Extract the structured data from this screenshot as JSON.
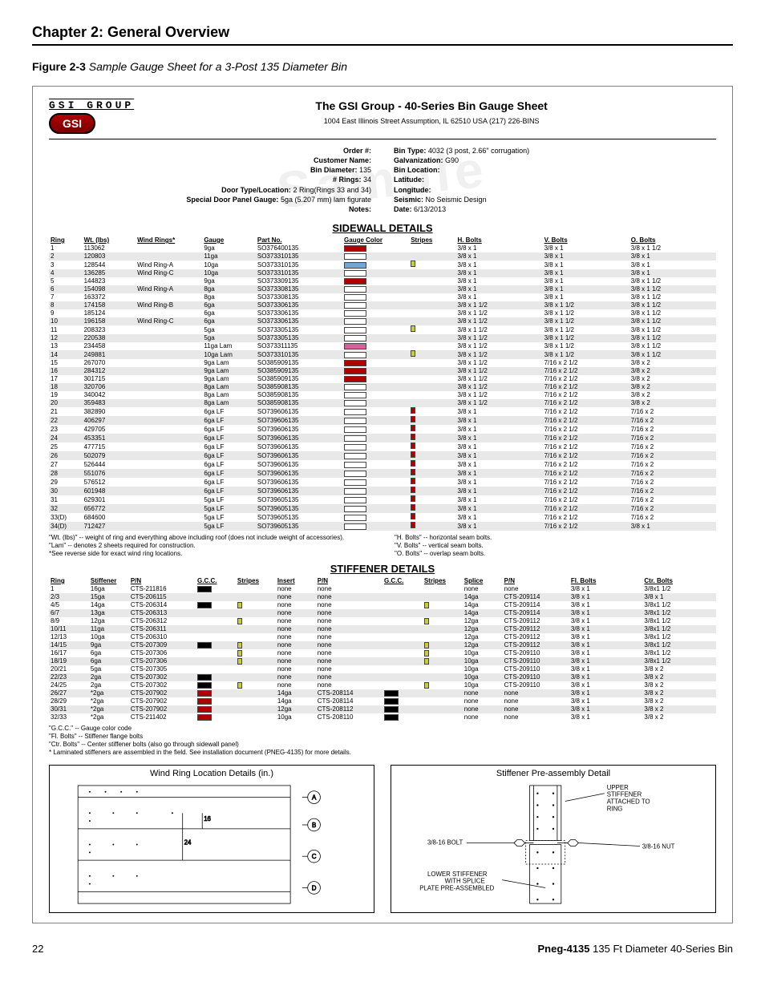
{
  "chapter": "Chapter 2: General Overview",
  "figure_label": "Figure 2-3",
  "figure_desc": "Sample Gauge Sheet for a 3-Post 135 Diameter Bin",
  "gsi_group_text": "GSI GROUP",
  "gsi_badge": "GSI",
  "sheet_title": "The GSI Group - 40-Series Bin Gauge Sheet",
  "address": "1004 East Illinois Street Assumption, IL 62510 USA (217) 226-BINS",
  "info_left": {
    "order": "Order #:",
    "customer": "Customer Name:",
    "diam_lbl": "Bin Diameter:",
    "diam_val": "135",
    "rings_lbl": "# Rings:",
    "rings_val": "34",
    "door_lbl": "Door Type/Location:",
    "door_val": "2 Ring(Rings 33 and 34)",
    "special_lbl": "Special Door Panel Gauge:",
    "special_val": "5ga (5.207 mm) lam figurate",
    "notes_lbl": "Notes:"
  },
  "info_right": {
    "bintype_lbl": "Bin Type:",
    "bintype_val": "4032 (3 post, 2.66\" corrugation)",
    "galv_lbl": "Galvanization:",
    "galv_val": "G90",
    "binloc_lbl": "Bin Location:",
    "lat_lbl": "Latitude:",
    "lon_lbl": "Longitude:",
    "seismic_lbl": "Seismic:",
    "seismic_val": "No Seismic Design",
    "date_lbl": "Date:",
    "date_val": "6/13/2013"
  },
  "sidewall_section": "SIDEWALL DETAILS",
  "sidewall_headers": [
    "Ring",
    "Wt. (lbs)",
    "Wind Rings*",
    "Gauge",
    "Part No.",
    "Gauge Color",
    "Stripes",
    "H. Bolts",
    "V. Bolts",
    "O. Bolts"
  ],
  "sidewall_rows": [
    {
      "r": "1",
      "wt": "113062",
      "wind": "",
      "g": "9ga",
      "pn": "SO376400135",
      "gc": "#b00000",
      "st": "",
      "h": "3/8 x 1",
      "v": "3/8 x 1",
      "o": "3/8 x 1 1/2"
    },
    {
      "r": "2",
      "wt": "120803",
      "wind": "",
      "g": "11ga",
      "pn": "SO373310135",
      "gc": "",
      "st": "",
      "h": "3/8 x 1",
      "v": "3/8 x 1",
      "o": "3/8 x 1"
    },
    {
      "r": "3",
      "wt": "128544",
      "wind": "Wind Ring-A",
      "g": "10ga",
      "pn": "SO373310135",
      "gc": "#6fa8d8",
      "st": "#cccc33",
      "h": "3/8 x 1",
      "v": "3/8 x 1",
      "o": "3/8 x 1"
    },
    {
      "r": "4",
      "wt": "136285",
      "wind": "Wind Ring-C",
      "g": "10ga",
      "pn": "SO373310135",
      "gc": "",
      "st": "",
      "h": "3/8 x 1",
      "v": "3/8 x 1",
      "o": "3/8 x 1"
    },
    {
      "r": "5",
      "wt": "144823",
      "wind": "",
      "g": "9ga",
      "pn": "SO373309135",
      "gc": "#b00000",
      "st": "",
      "h": "3/8 x 1",
      "v": "3/8 x 1",
      "o": "3/8 x 1 1/2"
    },
    {
      "r": "6",
      "wt": "154098",
      "wind": "Wind Ring-A",
      "g": "8ga",
      "pn": "SO373308135",
      "gc": "",
      "st": "",
      "h": "3/8 x 1",
      "v": "3/8 x 1",
      "o": "3/8 x 1 1/2"
    },
    {
      "r": "7",
      "wt": "163372",
      "wind": "",
      "g": "8ga",
      "pn": "SO373308135",
      "gc": "",
      "st": "",
      "h": "3/8 x 1",
      "v": "3/8 x 1",
      "o": "3/8 x 1 1/2"
    },
    {
      "r": "8",
      "wt": "174158",
      "wind": "Wind Ring-B",
      "g": "6ga",
      "pn": "SO373306135",
      "gc": "",
      "st": "",
      "h": "3/8 x 1 1/2",
      "v": "3/8 x 1 1/2",
      "o": "3/8 x 1 1/2"
    },
    {
      "r": "9",
      "wt": "185124",
      "wind": "",
      "g": "6ga",
      "pn": "SO373306135",
      "gc": "",
      "st": "",
      "h": "3/8 x 1 1/2",
      "v": "3/8 x 1 1/2",
      "o": "3/8 x 1 1/2"
    },
    {
      "r": "10",
      "wt": "196158",
      "wind": "Wind Ring-C",
      "g": "6ga",
      "pn": "SO373306135",
      "gc": "",
      "st": "",
      "h": "3/8 x 1 1/2",
      "v": "3/8 x 1 1/2",
      "o": "3/8 x 1 1/2"
    },
    {
      "r": "11",
      "wt": "208323",
      "wind": "",
      "g": "5ga",
      "pn": "SO373305135",
      "gc": "",
      "st": "#cccc33",
      "h": "3/8 x 1 1/2",
      "v": "3/8 x 1 1/2",
      "o": "3/8 x 1 1/2"
    },
    {
      "r": "12",
      "wt": "220538",
      "wind": "",
      "g": "5ga",
      "pn": "SO373305135",
      "gc": "",
      "st": "",
      "h": "3/8 x 1 1/2",
      "v": "3/8 x 1 1/2",
      "o": "3/8 x 1 1/2"
    },
    {
      "r": "13",
      "wt": "234458",
      "wind": "",
      "g": "11ga Lam",
      "pn": "SO373311135",
      "gc": "#d8609a",
      "st": "",
      "h": "3/8 x 1 1/2",
      "v": "3/8 x 1 1/2",
      "o": "3/8 x 1 1/2"
    },
    {
      "r": "14",
      "wt": "249881",
      "wind": "",
      "g": "10ga Lam",
      "pn": "SO373310135",
      "gc": "",
      "st": "#cccc33",
      "h": "3/8 x 1 1/2",
      "v": "3/8 x 1 1/2",
      "o": "3/8 x 1 1/2"
    },
    {
      "r": "15",
      "wt": "267070",
      "wind": "",
      "g": "9ga Lam",
      "pn": "SO385909135",
      "gc": "#b00000",
      "st": "",
      "h": "3/8 x 1 1/2",
      "v": "7/16 x 2 1/2",
      "o": "3/8 x 2"
    },
    {
      "r": "16",
      "wt": "284312",
      "wind": "",
      "g": "9ga Lam",
      "pn": "SO385909135",
      "gc": "#b00000",
      "st": "",
      "h": "3/8 x 1 1/2",
      "v": "7/16 x 2 1/2",
      "o": "3/8 x 2"
    },
    {
      "r": "17",
      "wt": "301715",
      "wind": "",
      "g": "9ga Lam",
      "pn": "SO385909135",
      "gc": "#b00000",
      "st": "",
      "h": "3/8 x 1 1/2",
      "v": "7/16 x 2 1/2",
      "o": "3/8 x 2"
    },
    {
      "r": "18",
      "wt": "320706",
      "wind": "",
      "g": "8ga Lam",
      "pn": "SO385908135",
      "gc": "",
      "st": "",
      "h": "3/8 x 1 1/2",
      "v": "7/16 x 2 1/2",
      "o": "3/8 x 2"
    },
    {
      "r": "19",
      "wt": "340042",
      "wind": "",
      "g": "8ga Lam",
      "pn": "SO385908135",
      "gc": "",
      "st": "",
      "h": "3/8 x 1 1/2",
      "v": "7/16 x 2 1/2",
      "o": "3/8 x 2"
    },
    {
      "r": "20",
      "wt": "359483",
      "wind": "",
      "g": "8ga Lam",
      "pn": "SO385908135",
      "gc": "",
      "st": "",
      "h": "3/8 x 1 1/2",
      "v": "7/16 x 2 1/2",
      "o": "3/8 x 2"
    },
    {
      "r": "21",
      "wt": "382890",
      "wind": "",
      "g": "6ga LF",
      "pn": "SO739606135",
      "gc": "",
      "st": "#b00000",
      "h": "3/8 x 1",
      "v": "7/16 x 2 1/2",
      "o": "7/16 x 2"
    },
    {
      "r": "22",
      "wt": "406297",
      "wind": "",
      "g": "6ga LF",
      "pn": "SO739606135",
      "gc": "",
      "st": "#b00000",
      "h": "3/8 x 1",
      "v": "7/16 x 2 1/2",
      "o": "7/16 x 2"
    },
    {
      "r": "23",
      "wt": "429705",
      "wind": "",
      "g": "6ga LF",
      "pn": "SO739606135",
      "gc": "",
      "st": "#b00000",
      "h": "3/8 x 1",
      "v": "7/16 x 2 1/2",
      "o": "7/16 x 2"
    },
    {
      "r": "24",
      "wt": "453351",
      "wind": "",
      "g": "6ga LF",
      "pn": "SO739606135",
      "gc": "",
      "st": "#b00000",
      "h": "3/8 x 1",
      "v": "7/16 x 2 1/2",
      "o": "7/16 x 2"
    },
    {
      "r": "25",
      "wt": "477715",
      "wind": "",
      "g": "6ga LF",
      "pn": "SO739606135",
      "gc": "",
      "st": "#b00000",
      "h": "3/8 x 1",
      "v": "7/16 x 2 1/2",
      "o": "7/16 x 2"
    },
    {
      "r": "26",
      "wt": "502079",
      "wind": "",
      "g": "6ga LF",
      "pn": "SO739606135",
      "gc": "",
      "st": "#b00000",
      "h": "3/8 x 1",
      "v": "7/16 x 2 1/2",
      "o": "7/16 x 2"
    },
    {
      "r": "27",
      "wt": "526444",
      "wind": "",
      "g": "6ga LF",
      "pn": "SO739606135",
      "gc": "",
      "st": "#b00000",
      "h": "3/8 x 1",
      "v": "7/16 x 2 1/2",
      "o": "7/16 x 2"
    },
    {
      "r": "28",
      "wt": "551076",
      "wind": "",
      "g": "6ga LF",
      "pn": "SO739606135",
      "gc": "",
      "st": "#b00000",
      "h": "3/8 x 1",
      "v": "7/16 x 2 1/2",
      "o": "7/16 x 2"
    },
    {
      "r": "29",
      "wt": "576512",
      "wind": "",
      "g": "6ga LF",
      "pn": "SO739606135",
      "gc": "",
      "st": "#b00000",
      "h": "3/8 x 1",
      "v": "7/16 x 2 1/2",
      "o": "7/16 x 2"
    },
    {
      "r": "30",
      "wt": "601948",
      "wind": "",
      "g": "6ga LF",
      "pn": "SO739606135",
      "gc": "",
      "st": "#b00000",
      "h": "3/8 x 1",
      "v": "7/16 x 2 1/2",
      "o": "7/16 x 2"
    },
    {
      "r": "31",
      "wt": "629301",
      "wind": "",
      "g": "5ga LF",
      "pn": "SO739605135",
      "gc": "",
      "st": "#b00000",
      "h": "3/8 x 1",
      "v": "7/16 x 2 1/2",
      "o": "7/16 x 2"
    },
    {
      "r": "32",
      "wt": "656772",
      "wind": "",
      "g": "5ga LF",
      "pn": "SO739605135",
      "gc": "",
      "st": "#b00000",
      "h": "3/8 x 1",
      "v": "7/16 x 2 1/2",
      "o": "7/16 x 2"
    },
    {
      "r": "33(D)",
      "wt": "684600",
      "wind": "",
      "g": "5ga LF",
      "pn": "SO739605135",
      "gc": "",
      "st": "#b00000",
      "h": "3/8 x 1",
      "v": "7/16 x 2 1/2",
      "o": "7/16 x 2"
    },
    {
      "r": "34(D)",
      "wt": "712427",
      "wind": "",
      "g": "5ga LF",
      "pn": "SO739605135",
      "gc": "",
      "st": "#b00000",
      "h": "3/8 x 1",
      "v": "7/16 x 2 1/2",
      "o": "3/8 x 1"
    }
  ],
  "sidewall_notes": [
    "\"Wt. (lbs)\" -- weight of ring and everything above including roof (does not include weight of accessories).",
    "\"Lam\" -- denotes 2 sheets required for construction.",
    "*See reverse side for exact wind ring locations.",
    "\"H. Bolts\" -- horizontal seam bolts.",
    "\"V. Bolts\" -- vertical seam bolts.",
    "\"O. Bolts\" -- overlap seam bolts."
  ],
  "stiffener_section": "STIFFENER DETAILS",
  "stiffener_headers": [
    "Ring",
    "Stiffener",
    "P/N",
    "G.C.C.",
    "Stripes",
    "Insert",
    "P/N",
    "G.C.C.",
    "Stripes",
    "Splice",
    "P/N",
    "Fl. Bolts",
    "Ctr. Bolts"
  ],
  "stiffener_rows": [
    {
      "r": "1",
      "st": "16ga",
      "pn": "CTS-211816",
      "gc": "#000000",
      "sp": "",
      "ins": "none",
      "ipn": "none",
      "igc": "",
      "isp": "",
      "spl": "none",
      "spn": "none",
      "fl": "3/8 x 1",
      "ct": "3/8x1 1/2"
    },
    {
      "r": "2/3",
      "st": "15ga",
      "pn": "CTS-206115",
      "gc": "",
      "sp": "",
      "ins": "none",
      "ipn": "none",
      "igc": "",
      "isp": "",
      "spl": "14ga",
      "spn": "CTS-209114",
      "fl": "3/8 x 1",
      "ct": "3/8 x 1"
    },
    {
      "r": "4/5",
      "st": "14ga",
      "pn": "CTS-206314",
      "gc": "#000000",
      "sp": "#cccc33",
      "ins": "none",
      "ipn": "none",
      "igc": "",
      "isp": "#cccc33",
      "spl": "14ga",
      "spn": "CTS-209114",
      "fl": "3/8 x 1",
      "ct": "3/8x1 1/2"
    },
    {
      "r": "6/7",
      "st": "13ga",
      "pn": "CTS-206313",
      "gc": "",
      "sp": "",
      "ins": "none",
      "ipn": "none",
      "igc": "",
      "isp": "",
      "spl": "14ga",
      "spn": "CTS-209114",
      "fl": "3/8 x 1",
      "ct": "3/8x1 1/2"
    },
    {
      "r": "8/9",
      "st": "12ga",
      "pn": "CTS-206312",
      "gc": "",
      "sp": "#cccc33",
      "ins": "none",
      "ipn": "none",
      "igc": "",
      "isp": "#cccc33",
      "spl": "12ga",
      "spn": "CTS-209112",
      "fl": "3/8 x 1",
      "ct": "3/8x1 1/2"
    },
    {
      "r": "10/11",
      "st": "11ga",
      "pn": "CTS-206311",
      "gc": "",
      "sp": "",
      "ins": "none",
      "ipn": "none",
      "igc": "",
      "isp": "",
      "spl": "12ga",
      "spn": "CTS-209112",
      "fl": "3/8 x 1",
      "ct": "3/8x1 1/2"
    },
    {
      "r": "12/13",
      "st": "10ga",
      "pn": "CTS-206310",
      "gc": "",
      "sp": "",
      "ins": "none",
      "ipn": "none",
      "igc": "",
      "isp": "",
      "spl": "12ga",
      "spn": "CTS-209112",
      "fl": "3/8 x 1",
      "ct": "3/8x1 1/2"
    },
    {
      "r": "14/15",
      "st": "9ga",
      "pn": "CTS-207309",
      "gc": "#000000",
      "sp": "#cccc33",
      "ins": "none",
      "ipn": "none",
      "igc": "",
      "isp": "#cccc33",
      "spl": "12ga",
      "spn": "CTS-209112",
      "fl": "3/8 x 1",
      "ct": "3/8x1 1/2"
    },
    {
      "r": "16/17",
      "st": "6ga",
      "pn": "CTS-207306",
      "gc": "",
      "sp": "#cccc33",
      "ins": "none",
      "ipn": "none",
      "igc": "",
      "isp": "#cccc33",
      "spl": "10ga",
      "spn": "CTS-209110",
      "fl": "3/8 x 1",
      "ct": "3/8x1 1/2"
    },
    {
      "r": "18/19",
      "st": "6ga",
      "pn": "CTS-207306",
      "gc": "",
      "sp": "#cccc33",
      "ins": "none",
      "ipn": "none",
      "igc": "",
      "isp": "#cccc33",
      "spl": "10ga",
      "spn": "CTS-209110",
      "fl": "3/8 x 1",
      "ct": "3/8x1 1/2"
    },
    {
      "r": "20/21",
      "st": "5ga",
      "pn": "CTS-207305",
      "gc": "",
      "sp": "",
      "ins": "none",
      "ipn": "none",
      "igc": "",
      "isp": "",
      "spl": "10ga",
      "spn": "CTS-209110",
      "fl": "3/8 x 1",
      "ct": "3/8 x 2"
    },
    {
      "r": "22/23",
      "st": "2ga",
      "pn": "CTS-207302",
      "gc": "#000000",
      "sp": "",
      "ins": "none",
      "ipn": "none",
      "igc": "",
      "isp": "",
      "spl": "10ga",
      "spn": "CTS-209110",
      "fl": "3/8 x 1",
      "ct": "3/8 x 2"
    },
    {
      "r": "24/25",
      "st": "2ga",
      "pn": "CTS-207302",
      "gc": "#000000",
      "sp": "#cccc33",
      "ins": "none",
      "ipn": "none",
      "igc": "",
      "isp": "#cccc33",
      "spl": "10ga",
      "spn": "CTS-209110",
      "fl": "3/8 x 1",
      "ct": "3/8 x 2"
    },
    {
      "r": "26/27",
      "st": "*2ga",
      "pn": "CTS-207902",
      "gc": "#b00000",
      "sp": "",
      "ins": "14ga",
      "ipn": "CTS-208114",
      "igc": "#000000",
      "isp": "",
      "spl": "none",
      "spn": "none",
      "fl": "3/8 x 1",
      "ct": "3/8 x 2"
    },
    {
      "r": "28/29",
      "st": "*2ga",
      "pn": "CTS-207902",
      "gc": "#b00000",
      "sp": "",
      "ins": "14ga",
      "ipn": "CTS-208114",
      "igc": "#000000",
      "isp": "",
      "spl": "none",
      "spn": "none",
      "fl": "3/8 x 1",
      "ct": "3/8 x 2"
    },
    {
      "r": "30/31",
      "st": "*2ga",
      "pn": "CTS-207902",
      "gc": "#b00000",
      "sp": "",
      "ins": "12ga",
      "ipn": "CTS-208112",
      "igc": "#000000",
      "isp": "",
      "spl": "none",
      "spn": "none",
      "fl": "3/8 x 1",
      "ct": "3/8 x 2"
    },
    {
      "r": "32/33",
      "st": "*2ga",
      "pn": "CTS-211402",
      "gc": "#b00000",
      "sp": "",
      "ins": "10ga",
      "ipn": "CTS-208110",
      "igc": "#000000",
      "isp": "",
      "spl": "none",
      "spn": "none",
      "fl": "3/8 x 1",
      "ct": "3/8 x 2"
    }
  ],
  "stiffener_notes": [
    "\"G.C.C.\" -- Gauge color code",
    "\"Fl. Bolts\" -- Stiffener flange bolts",
    "\"Ctr. Bolts\" -- Center stiffener bolts (also go through sidewall panel)",
    "* Laminated stiffeners are assembled in the field. See installation document (PNEG-4135) for more details."
  ],
  "diagram_left_title": "Wind Ring Location Details (in.)",
  "diagram_left_labels": {
    "A": "A",
    "B": "B",
    "C": "C",
    "D": "D",
    "v16": "16",
    "v24": "24"
  },
  "diagram_right_title": "Stiffener Pre-assembly Detail",
  "diagram_right_labels": {
    "upper": "UPPER STIFFENER ATTACHED TO RING",
    "bolt": "3/8-16 BOLT",
    "nut": "3/8-16 NUT",
    "lower": "LOWER STIFFENER WITH SPLICE PLATE PRE-ASSEMBLED"
  },
  "footer_page": "22",
  "footer_doc_bold": "Pneg-4135",
  "footer_doc_rest": " 135 Ft Diameter 40-Series Bin"
}
